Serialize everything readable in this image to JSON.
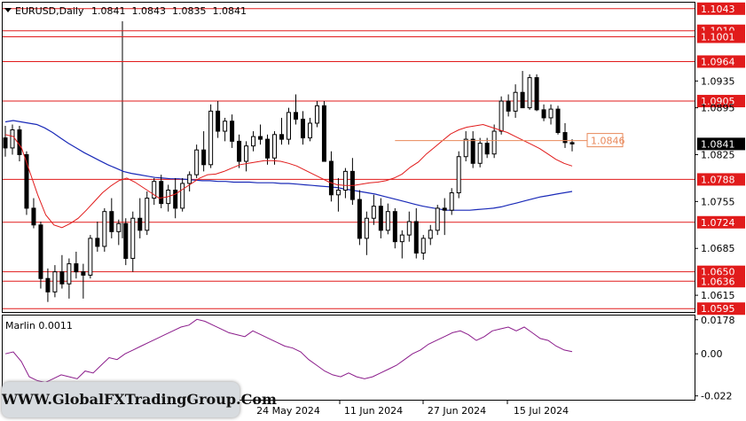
{
  "header": {
    "instrument": "EURUSD,Daily",
    "ohlc": "1.0841  1.0843  1.0835  1.0841"
  },
  "indicator": {
    "label": "Marlin 0.0011"
  },
  "watermark": "WWW.GlobalFXTradingGroup.Com",
  "colors": {
    "bull": "#ffffff",
    "bear": "#000000",
    "ma_fast": "#e11b1b",
    "ma_slow": "#1a2ab8",
    "level": "#e11b1b",
    "oscillator": "#8b1c8b",
    "current_price_tag": "#000000"
  },
  "chart_data": {
    "type": "candlestick",
    "price_axis_ticks": [
      "1.0935",
      "1.0895",
      "1.0825",
      "1.0755",
      "1.0685",
      "1.0615"
    ],
    "price_range": [
      1.059,
      1.1052
    ],
    "date_axis_ticks": [
      "24 May 2024",
      "11 Jun 2024",
      "27 Jun 2024",
      "15 Jul 2024"
    ],
    "levels": [
      {
        "value": 1.1043,
        "label": "1.1043"
      },
      {
        "value": 1.101,
        "label": "1.1010"
      },
      {
        "value": 1.1001,
        "label": "1.1001"
      },
      {
        "value": 1.0964,
        "label": "1.0964"
      },
      {
        "value": 1.0905,
        "label": "1.0905"
      },
      {
        "value": 1.0788,
        "label": "1.0788"
      },
      {
        "value": 1.0724,
        "label": "1.0724"
      },
      {
        "value": 1.065,
        "label": "1.0650"
      },
      {
        "value": 1.0636,
        "label": "1.0636"
      },
      {
        "value": 1.0595,
        "label": "1.0595"
      }
    ],
    "annotation": {
      "value": 1.0846,
      "label": "1.0846"
    },
    "current_price": {
      "value": 1.0841,
      "label": "1.0841"
    },
    "candles": [
      [
        1.085,
        1.0868,
        1.0822,
        1.0835
      ],
      [
        1.0835,
        1.087,
        1.0825,
        1.0862
      ],
      [
        1.0862,
        1.0868,
        1.0815,
        1.0825
      ],
      [
        1.0825,
        1.083,
        1.0735,
        1.0745
      ],
      [
        1.0745,
        1.076,
        1.0715,
        1.072
      ],
      [
        1.072,
        1.0725,
        1.0625,
        1.064
      ],
      [
        1.064,
        1.0655,
        1.0605,
        1.062
      ],
      [
        1.062,
        1.066,
        1.0612,
        1.065
      ],
      [
        1.065,
        1.0675,
        1.0625,
        1.0632
      ],
      [
        1.0632,
        1.067,
        1.061,
        1.0662
      ],
      [
        1.0662,
        1.068,
        1.064,
        1.065
      ],
      [
        1.065,
        1.0662,
        1.061,
        1.0645
      ],
      [
        1.0645,
        1.0705,
        1.064,
        1.07
      ],
      [
        1.07,
        1.0725,
        1.068,
        1.0688
      ],
      [
        1.0688,
        1.0745,
        1.068,
        1.074
      ],
      [
        1.074,
        1.076,
        1.07,
        1.071
      ],
      [
        1.071,
        1.0728,
        1.069,
        1.0722
      ],
      [
        1.0722,
        1.073,
        1.066,
        1.067
      ],
      [
        1.067,
        1.074,
        1.065,
        1.073
      ],
      [
        1.073,
        1.076,
        1.07,
        1.0712
      ],
      [
        1.0712,
        1.077,
        1.0705,
        1.076
      ],
      [
        1.076,
        1.079,
        1.075,
        1.0785
      ],
      [
        1.0785,
        1.0795,
        1.0745,
        1.0752
      ],
      [
        1.0752,
        1.078,
        1.074,
        1.0772
      ],
      [
        1.0772,
        1.079,
        1.073,
        1.0745
      ],
      [
        1.0745,
        1.079,
        1.074,
        1.0782
      ],
      [
        1.0782,
        1.08,
        1.077,
        1.0795
      ],
      [
        1.0795,
        1.084,
        1.079,
        1.0832
      ],
      [
        1.0832,
        1.086,
        1.08,
        1.081
      ],
      [
        1.081,
        1.09,
        1.0805,
        1.089
      ],
      [
        1.089,
        1.0905,
        1.085,
        1.086
      ],
      [
        1.086,
        1.088,
        1.0845,
        1.0875
      ],
      [
        1.0875,
        1.0885,
        1.0835,
        1.0845
      ],
      [
        1.0845,
        1.0855,
        1.0805,
        1.0815
      ],
      [
        1.0815,
        1.0845,
        1.08,
        1.0838
      ],
      [
        1.0838,
        1.086,
        1.083,
        1.0852
      ],
      [
        1.0852,
        1.087,
        1.084,
        1.0848
      ],
      [
        1.0848,
        1.0855,
        1.081,
        1.082
      ],
      [
        1.082,
        1.086,
        1.081,
        1.0855
      ],
      [
        1.0855,
        1.088,
        1.084,
        1.0848
      ],
      [
        1.0848,
        1.0895,
        1.084,
        1.0888
      ],
      [
        1.0888,
        1.0915,
        1.087,
        1.0878
      ],
      [
        1.0878,
        1.089,
        1.084,
        1.085
      ],
      [
        1.085,
        1.088,
        1.0845,
        1.0872
      ],
      [
        1.0872,
        1.0905,
        1.0866,
        1.0898
      ],
      [
        1.0898,
        1.0905,
        1.0815,
        1.0815
      ],
      [
        1.0815,
        1.083,
        1.0755,
        1.0765
      ],
      [
        1.0765,
        1.079,
        1.074,
        1.0772
      ],
      [
        1.0772,
        1.0805,
        1.076,
        1.08
      ],
      [
        1.08,
        1.082,
        1.075,
        1.0758
      ],
      [
        1.0758,
        1.0772,
        1.069,
        1.07
      ],
      [
        1.07,
        1.074,
        1.0675,
        1.073
      ],
      [
        1.073,
        1.0765,
        1.072,
        1.0748
      ],
      [
        1.0748,
        1.076,
        1.07,
        1.0712
      ],
      [
        1.0712,
        1.0752,
        1.0706,
        1.074
      ],
      [
        1.074,
        1.0745,
        1.0685,
        1.0695
      ],
      [
        1.0695,
        1.0712,
        1.067,
        1.0705
      ],
      [
        1.0705,
        1.074,
        1.0695,
        1.0725
      ],
      [
        1.0725,
        1.0745,
        1.067,
        1.0678
      ],
      [
        1.0678,
        1.0705,
        1.0668,
        1.07
      ],
      [
        1.07,
        1.072,
        1.069,
        1.0712
      ],
      [
        1.0712,
        1.075,
        1.0705,
        1.0745
      ],
      [
        1.0745,
        1.076,
        1.0705,
        1.0742
      ],
      [
        1.0742,
        1.0775,
        1.0735,
        1.0768
      ],
      [
        1.0768,
        1.083,
        1.076,
        1.0822
      ],
      [
        1.0822,
        1.086,
        1.0815,
        1.0848
      ],
      [
        1.0848,
        1.086,
        1.0805,
        1.0812
      ],
      [
        1.0812,
        1.085,
        1.0806,
        1.0842
      ],
      [
        1.0842,
        1.085,
        1.082,
        1.0826
      ],
      [
        1.0826,
        1.087,
        1.082,
        1.086
      ],
      [
        1.086,
        1.0912,
        1.0855,
        1.0905
      ],
      [
        1.0905,
        1.0915,
        1.0882,
        1.089
      ],
      [
        1.089,
        1.093,
        1.088,
        1.0918
      ],
      [
        1.0918,
        1.095,
        1.0895,
        1.0895
      ],
      [
        1.0895,
        1.0945,
        1.0892,
        1.094
      ],
      [
        1.094,
        1.0945,
        1.089,
        1.0892
      ],
      [
        1.0892,
        1.09,
        1.0875,
        1.088
      ],
      [
        1.088,
        1.09,
        1.087,
        1.0893
      ],
      [
        1.0893,
        1.0898,
        1.0855,
        1.0858
      ],
      [
        1.0858,
        1.0872,
        1.0835,
        1.0843
      ],
      [
        1.0843,
        1.0848,
        1.083,
        1.0841
      ]
    ],
    "ma_fast": [
      1.0855,
      1.0852,
      1.0835,
      1.08,
      1.0765,
      1.0735,
      1.072,
      1.0716,
      1.0722,
      1.073,
      1.0742,
      1.0755,
      1.0768,
      1.0778,
      1.0786,
      1.079,
      1.0784,
      1.0776,
      1.0768,
      1.076,
      1.0762,
      1.0766,
      1.0774,
      1.0782,
      1.079,
      1.0795,
      1.0796,
      1.08,
      1.0805,
      1.081,
      1.0812,
      1.0814,
      1.0816,
      1.0816,
      1.0815,
      1.0812,
      1.0808,
      1.0802,
      1.0796,
      1.079,
      1.0784,
      1.078,
      1.0779,
      1.0779,
      1.0781,
      1.0783,
      1.0784,
      1.0786,
      1.079,
      1.0796,
      1.0806,
      1.0814,
      1.0826,
      1.0836,
      1.0846,
      1.0856,
      1.0862,
      1.0866,
      1.0868,
      1.087,
      1.0866,
      1.0862,
      1.0858,
      1.0852,
      1.0846,
      1.084,
      1.0834,
      1.0826,
      1.0818,
      1.0812,
      1.0808
    ],
    "ma_slow": [
      1.0874,
      1.0876,
      1.0874,
      1.0872,
      1.087,
      1.0865,
      1.0858,
      1.085,
      1.0842,
      1.0835,
      1.0828,
      1.0822,
      1.0816,
      1.081,
      1.0805,
      1.08,
      1.0797,
      1.0795,
      1.0793,
      1.0791,
      1.079,
      1.0789,
      1.0789,
      1.0788,
      1.0787,
      1.0786,
      1.0786,
      1.0785,
      1.0785,
      1.0784,
      1.0784,
      1.0784,
      1.0783,
      1.0783,
      1.0783,
      1.0782,
      1.0782,
      1.0781,
      1.078,
      1.0779,
      1.0778,
      1.0777,
      1.0776,
      1.0774,
      1.0772,
      1.077,
      1.0768,
      1.0766,
      1.0763,
      1.076,
      1.0757,
      1.0754,
      1.0751,
      1.0748,
      1.0746,
      1.0744,
      1.0742,
      1.0742,
      1.0742,
      1.0742,
      1.0743,
      1.0744,
      1.0745,
      1.0747,
      1.075,
      1.0753,
      1.0756,
      1.0759,
      1.0762,
      1.0764,
      1.0766,
      1.0768,
      1.077
    ],
    "oscillator": {
      "ticks": [
        "0.0178",
        "0.00",
        "-0.022"
      ],
      "range": [
        -0.024,
        0.02
      ],
      "values": [
        0.0,
        0.001,
        -0.004,
        -0.012,
        -0.014,
        -0.015,
        -0.013,
        -0.011,
        -0.012,
        -0.013,
        -0.009,
        -0.01,
        -0.006,
        -0.002,
        -0.003,
        0.0,
        0.002,
        0.004,
        0.006,
        0.008,
        0.01,
        0.012,
        0.014,
        0.015,
        0.018,
        0.017,
        0.015,
        0.013,
        0.011,
        0.01,
        0.009,
        0.012,
        0.01,
        0.008,
        0.006,
        0.004,
        0.003,
        0.001,
        -0.003,
        -0.006,
        -0.009,
        -0.011,
        -0.012,
        -0.01,
        -0.012,
        -0.013,
        -0.012,
        -0.01,
        -0.008,
        -0.006,
        -0.003,
        0.0,
        0.002,
        0.005,
        0.007,
        0.009,
        0.011,
        0.012,
        0.01,
        0.007,
        0.009,
        0.012,
        0.013,
        0.014,
        0.012,
        0.014,
        0.011,
        0.008,
        0.007,
        0.004,
        0.002,
        0.0011
      ]
    }
  }
}
